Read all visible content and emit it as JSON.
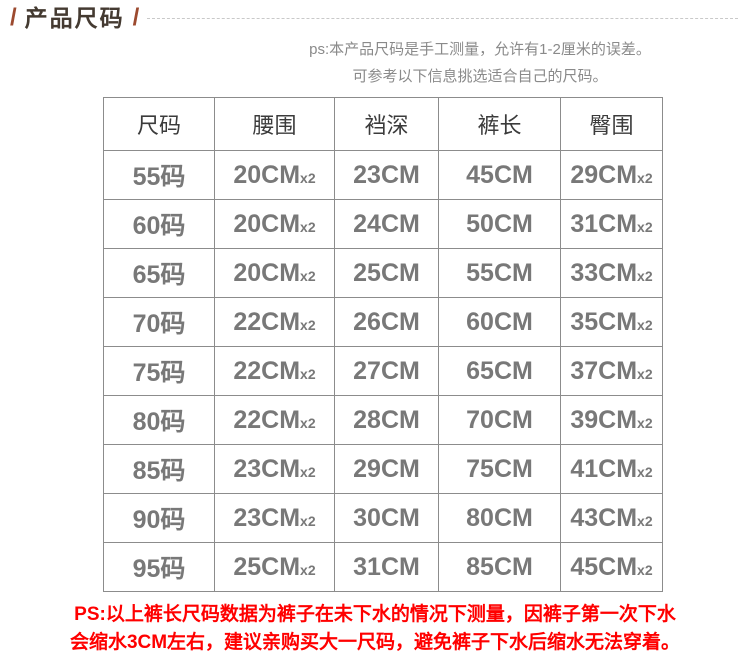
{
  "header": {
    "slash_left": "/",
    "title": "产品尺码",
    "slash_right": "/"
  },
  "top_note": {
    "line1": "ps:本产品尺码是手工测量，允许有1-2厘米的误差。",
    "line2": "可参考以下信息挑选适合自己的尺码。"
  },
  "size_table": {
    "headers": [
      "尺码",
      "腰围",
      "裆深",
      "裤长",
      "臀围"
    ],
    "rows": [
      {
        "cells": [
          {
            "main": "55码"
          },
          {
            "main": "20CM",
            "sub": "x2"
          },
          {
            "main": "23CM"
          },
          {
            "main": "45CM"
          },
          {
            "main": "29CM",
            "sub": "x2"
          }
        ]
      },
      {
        "cells": [
          {
            "main": "60码"
          },
          {
            "main": "20CM",
            "sub": "x2"
          },
          {
            "main": "24CM"
          },
          {
            "main": "50CM"
          },
          {
            "main": "31CM",
            "sub": "x2"
          }
        ]
      },
      {
        "cells": [
          {
            "main": "65码"
          },
          {
            "main": "20CM",
            "sub": "x2"
          },
          {
            "main": "25CM"
          },
          {
            "main": "55CM"
          },
          {
            "main": "33CM",
            "sub": "x2"
          }
        ]
      },
      {
        "cells": [
          {
            "main": "70码"
          },
          {
            "main": "22CM",
            "sub": "x2"
          },
          {
            "main": "26CM"
          },
          {
            "main": "60CM"
          },
          {
            "main": "35CM",
            "sub": "x2"
          }
        ]
      },
      {
        "cells": [
          {
            "main": "75码"
          },
          {
            "main": "22CM",
            "sub": "x2"
          },
          {
            "main": "27CM"
          },
          {
            "main": "65CM"
          },
          {
            "main": "37CM",
            "sub": "x2"
          }
        ]
      },
      {
        "cells": [
          {
            "main": "80码"
          },
          {
            "main": "22CM",
            "sub": "x2"
          },
          {
            "main": "28CM"
          },
          {
            "main": "70CM"
          },
          {
            "main": "39CM",
            "sub": "x2"
          }
        ]
      },
      {
        "cells": [
          {
            "main": "85码"
          },
          {
            "main": "23CM",
            "sub": "x2"
          },
          {
            "main": "29CM"
          },
          {
            "main": "75CM"
          },
          {
            "main": "41CM",
            "sub": "x2"
          }
        ]
      },
      {
        "cells": [
          {
            "main": "90码"
          },
          {
            "main": "23CM",
            "sub": "x2"
          },
          {
            "main": "30CM"
          },
          {
            "main": "80CM"
          },
          {
            "main": "43CM",
            "sub": "x2"
          }
        ]
      },
      {
        "cells": [
          {
            "main": "95码"
          },
          {
            "main": "25CM",
            "sub": "x2"
          },
          {
            "main": "31CM"
          },
          {
            "main": "85CM"
          },
          {
            "main": "45CM",
            "sub": "x2"
          }
        ]
      }
    ]
  },
  "bottom_note": {
    "line1": "PS:以上裤长尺码数据为裤子在未下水的情况下测量，因裤子第一次下水",
    "line2": "会缩水3CM左右，建议亲购买大一尺码，避免裤子下水后缩水无法穿着。"
  },
  "colors": {
    "accent_slash": "#9c4a2f",
    "title_text": "#443a31",
    "note_gray": "#8a8a8a",
    "table_border": "#8c8c8c",
    "table_header_text": "#3b3b3b",
    "table_cell_text": "#787878",
    "warning_red": "#ff0000"
  }
}
